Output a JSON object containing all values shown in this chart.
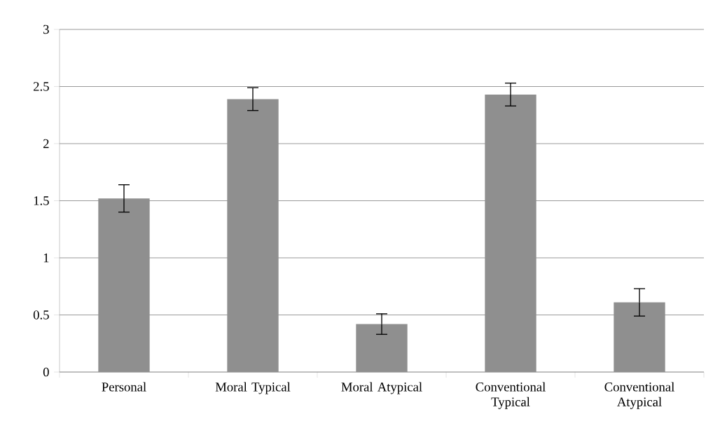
{
  "chart_data": {
    "type": "bar",
    "categories": [
      "Personal",
      "Moral Typical",
      "Moral Atypical",
      "Conventional Typical",
      "Conventional Atypical"
    ],
    "values": [
      1.52,
      2.39,
      0.42,
      2.43,
      0.61
    ],
    "errors": [
      0.12,
      0.1,
      0.09,
      0.1,
      0.12
    ],
    "color": "#8f8f8f",
    "ylim": [
      0,
      3
    ],
    "yticks": [
      0,
      0.5,
      1,
      1.5,
      2,
      2.5,
      3
    ],
    "grid": "y"
  }
}
